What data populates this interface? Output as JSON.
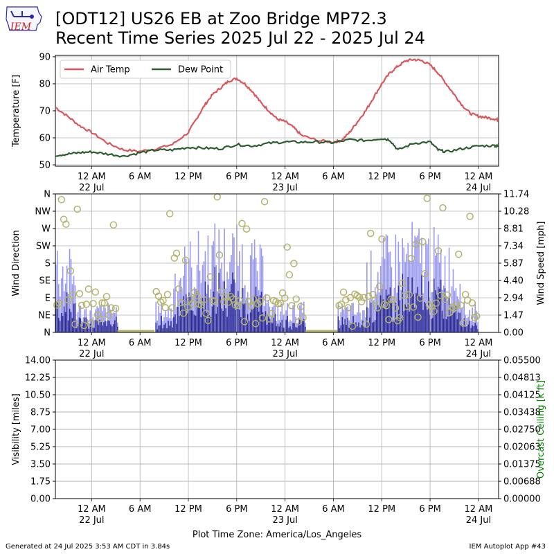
{
  "header": {
    "title_line1": "[ODT12] US26 EB at Zoo Bridge MP72.3",
    "title_line2": "Recent Time Series 2025 Jul 22 - 2025 Jul 24",
    "logo_text": "IEM"
  },
  "footer": {
    "generated": "Generated at 24 Jul 2025 3:53 AM CDT in 3.84s",
    "app": "IEM Autoplot App #43",
    "timezone_label": "Plot Time Zone: America/Los_Angeles"
  },
  "colors": {
    "air_temp": "#d9575c",
    "dew_point": "#2e5b30",
    "wind_speed": "#9a99f0",
    "wind_gust_bar": "#2e2d99",
    "wind_direction": "#b3b36b",
    "ceiling_axis": "#008000",
    "grid": "#b0b0b0"
  },
  "chart_data": [
    {
      "type": "line",
      "ylabel": "Temperature [F]",
      "ylim": [
        49.5,
        90.5
      ],
      "yticks": [
        "50",
        "60",
        "70",
        "80",
        "90"
      ],
      "x_range_hours": [
        -4.5,
        50.5
      ],
      "x_tick_labels": [
        {
          "hour": 0,
          "label": "12 AM",
          "sub": "22 Jul"
        },
        {
          "hour": 6,
          "label": "6 AM",
          "sub": ""
        },
        {
          "hour": 12,
          "label": "12 PM",
          "sub": ""
        },
        {
          "hour": 18,
          "label": "6 PM",
          "sub": ""
        },
        {
          "hour": 24,
          "label": "12 AM",
          "sub": "23 Jul"
        },
        {
          "hour": 30,
          "label": "6 AM",
          "sub": ""
        },
        {
          "hour": 36,
          "label": "12 PM",
          "sub": ""
        },
        {
          "hour": 42,
          "label": "6 PM",
          "sub": ""
        },
        {
          "hour": 48,
          "label": "12 AM",
          "sub": "24 Jul"
        }
      ],
      "grid": true,
      "legend_position": "top-left",
      "series": [
        {
          "name": "Air Temp",
          "x": [
            -4.5,
            -3,
            -1.5,
            0,
            2,
            4,
            6,
            8,
            10,
            12,
            13,
            14,
            15,
            16,
            17,
            18,
            19,
            20,
            21,
            22,
            23,
            24,
            25,
            26,
            28,
            30,
            31,
            32,
            33,
            34,
            35,
            36,
            37,
            38,
            39,
            40,
            41,
            42,
            43,
            44,
            45,
            46,
            47,
            48,
            49,
            50,
            50.5
          ],
          "values": [
            71.3,
            68,
            64.5,
            62,
            58,
            55.5,
            55,
            56,
            57.5,
            62,
            67,
            72,
            76,
            78.5,
            81,
            82,
            80,
            77,
            73,
            70,
            67,
            66,
            64,
            61,
            59,
            58.5,
            59,
            62,
            66,
            70,
            75,
            80,
            84,
            86.5,
            88.5,
            89,
            88.5,
            87,
            84,
            80,
            76,
            72,
            69,
            68,
            67.5,
            67,
            66.5
          ]
        },
        {
          "name": "Dew Point",
          "x": [
            -4.5,
            -3,
            -1.5,
            0,
            2,
            4,
            6,
            8,
            10,
            12,
            14,
            16,
            18,
            20,
            22,
            24,
            26,
            28,
            30,
            32,
            34,
            36,
            37,
            38,
            40,
            42,
            43,
            44,
            46,
            48,
            50,
            50.5
          ],
          "values": [
            53.5,
            54,
            54.5,
            54.8,
            54,
            53.2,
            54.5,
            55.5,
            55.5,
            56.5,
            56.2,
            56,
            57.5,
            57,
            58,
            58.5,
            58.4,
            58.5,
            58.2,
            59.3,
            59,
            59.8,
            59.2,
            55.5,
            58,
            58.5,
            55.5,
            54.8,
            56,
            57,
            57.1,
            57
          ]
        }
      ]
    },
    {
      "type": "bar",
      "ylabel": "Wind Direction",
      "y2label": "Wind Speed [mph]",
      "direction_ticks": [
        "N",
        "NE",
        "E",
        "SE",
        "S",
        "SW",
        "W",
        "NW",
        "N"
      ],
      "speed_ticks": [
        "0.00",
        "1.47",
        "2.94",
        "4.40",
        "5.87",
        "7.34",
        "8.81",
        "10.28",
        "11.74"
      ],
      "speed_ylim": [
        0,
        11.74
      ],
      "grid": true,
      "active_periods_hours": [
        [
          -4.5,
          3.2
        ],
        [
          7.8,
          26.5
        ],
        [
          30.5,
          48
        ]
      ],
      "notes": "Dense gust bars (light) and speed bars (dark) with wind direction markers (circles); values reconstructed approximately from the plot."
    },
    {
      "type": "line",
      "ylabel": "Visibility [miles]",
      "y2label": "Overcast Ceiling [k ft]",
      "ylim": [
        0,
        14
      ],
      "yticks": [
        "0.00",
        "1.75",
        "3.50",
        "5.25",
        "7.00",
        "8.75",
        "10.50",
        "12.25",
        "14.00"
      ],
      "y2lim": [
        0,
        0.055
      ],
      "y2ticks": [
        "0.00000",
        "0.00688",
        "0.01375",
        "0.02063",
        "0.02750",
        "0.03438",
        "0.04125",
        "0.04813",
        "0.05500"
      ],
      "grid": true,
      "series": []
    }
  ]
}
